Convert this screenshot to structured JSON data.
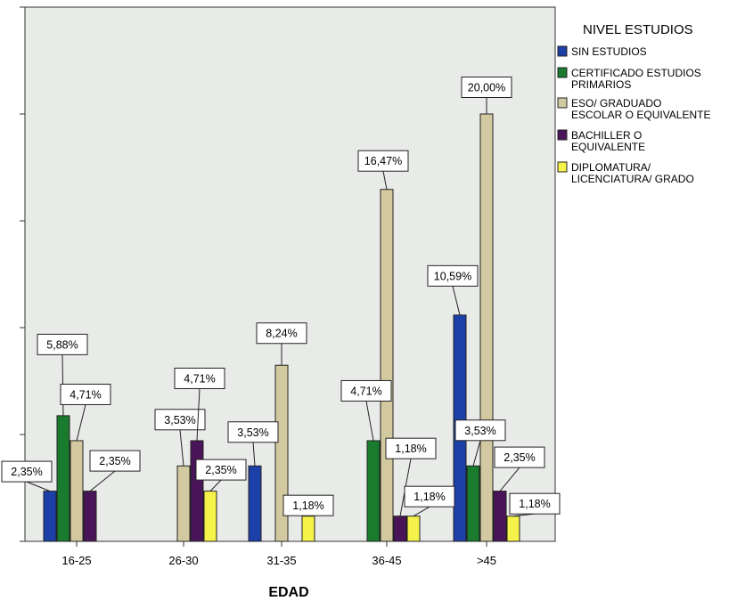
{
  "chart_data": {
    "type": "bar",
    "xlabel": "EDAD",
    "ylabel": "",
    "ylim": [
      0,
      25
    ],
    "grid": false,
    "legend_title": "NIVEL ESTUDIOS",
    "legend_position": "right",
    "categories": [
      "16-25",
      "26-30",
      "31-35",
      "36-45",
      ">45"
    ],
    "series": [
      {
        "name": "SIN ESTUDIOS",
        "legend_lines": [
          "SIN ESTUDIOS"
        ],
        "color": "#1c3fa8",
        "values": [
          2.35,
          null,
          3.53,
          null,
          10.59
        ],
        "labels": [
          "2,35%",
          "",
          "3,53%",
          "",
          "10,59%"
        ]
      },
      {
        "name": "CERTIFICADO ESTUDIOS PRIMARIOS",
        "legend_lines": [
          "CERTIFICADO ESTUDIOS",
          "PRIMARIOS"
        ],
        "color": "#1a7a2e",
        "values": [
          5.88,
          null,
          null,
          4.71,
          3.53
        ],
        "labels": [
          "5,88%",
          "",
          "",
          "4,71%",
          "3,53%"
        ]
      },
      {
        "name": "ESO/ GRADUADO ESCOLAR O EQUIVALENTE",
        "legend_lines": [
          "ESO/ GRADUADO",
          "ESCOLAR O EQUIVALENTE"
        ],
        "color": "#d2c9a0",
        "values": [
          4.71,
          3.53,
          8.24,
          16.47,
          20.0
        ],
        "labels": [
          "4,71%",
          "3,53%",
          "8,24%",
          "16,47%",
          "20,00%"
        ]
      },
      {
        "name": "BACHILLER O EQUIVALENTE",
        "legend_lines": [
          "BACHILLER O",
          "EQUIVALENTE"
        ],
        "color": "#4a1558",
        "values": [
          2.35,
          4.71,
          null,
          1.18,
          2.35
        ],
        "labels": [
          "2,35%",
          "4,71%",
          "",
          "1,18%",
          "2,35%"
        ]
      },
      {
        "name": "DIPLOMATURA/ LICENCIATURA/ GRADO",
        "legend_lines": [
          "DIPLOMATURA/",
          "LICENCIATURA/ GRADO"
        ],
        "color": "#f5f24a",
        "values": [
          null,
          2.35,
          1.18,
          1.18,
          1.18
        ],
        "labels": [
          "",
          "2,35%",
          "1,18%",
          "1,18%",
          "1,18%"
        ]
      }
    ]
  }
}
